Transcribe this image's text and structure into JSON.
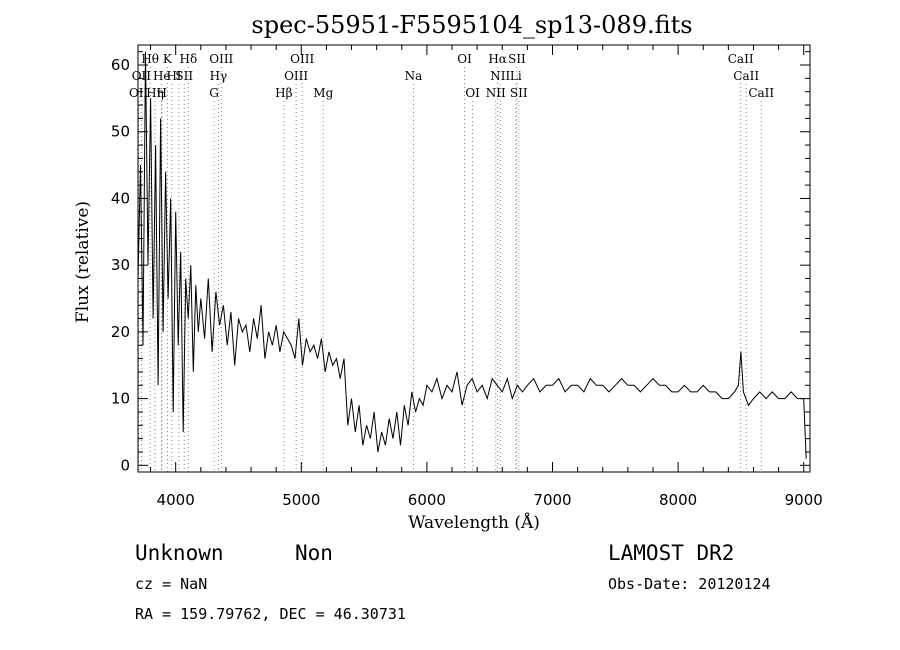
{
  "chart_data": {
    "type": "line",
    "title": "spec-55951-F5595104_sp13-089.fits",
    "xlabel": "Wavelength (Å)",
    "ylabel": "Flux (relative)",
    "xlim": [
      3700,
      9050
    ],
    "ylim": [
      -1,
      63
    ],
    "xticks": [
      "4000",
      "5000",
      "6000",
      "7000",
      "8000",
      "9000"
    ],
    "yticks": [
      "0",
      "10",
      "20",
      "30",
      "40",
      "50",
      "60"
    ],
    "series": [
      {
        "x": [
          3700,
          3720,
          3740,
          3760,
          3780,
          3800,
          3820,
          3840,
          3860,
          3880,
          3900,
          3920,
          3940,
          3960,
          3980,
          4000,
          4020,
          4040,
          4060,
          4080,
          4100,
          4120,
          4140,
          4160,
          4180,
          4200,
          4230,
          4260,
          4290,
          4320,
          4350,
          4380,
          4410,
          4440,
          4470,
          4500,
          4530,
          4560,
          4590,
          4620,
          4650,
          4680,
          4710,
          4740,
          4770,
          4800,
          4830,
          4860,
          4890,
          4920,
          4950,
          4980,
          5010,
          5040,
          5070,
          5100,
          5130,
          5160,
          5190,
          5220,
          5250,
          5280,
          5310,
          5340,
          5370,
          5400,
          5430,
          5460,
          5490,
          5520,
          5550,
          5580,
          5610,
          5640,
          5670,
          5700,
          5730,
          5760,
          5790,
          5820,
          5850,
          5880,
          5910,
          5940,
          5970,
          6000,
          6040,
          6080,
          6120,
          6160,
          6200,
          6240,
          6280,
          6320,
          6360,
          6400,
          6440,
          6480,
          6520,
          6560,
          6600,
          6640,
          6680,
          6720,
          6760,
          6800,
          6850,
          6900,
          6950,
          7000,
          7050,
          7100,
          7150,
          7200,
          7250,
          7300,
          7350,
          7400,
          7450,
          7500,
          7550,
          7600,
          7650,
          7700,
          7750,
          7800,
          7850,
          7900,
          7950,
          8000,
          8050,
          8100,
          8150,
          8200,
          8250,
          8300,
          8350,
          8400,
          8450,
          8480,
          8500,
          8520,
          8540,
          8560,
          8600,
          8650,
          8700,
          8750,
          8800,
          8850,
          8900,
          8950,
          9000,
          9020
        ],
        "y": [
          28,
          45,
          18,
          62,
          30,
          55,
          22,
          48,
          12,
          52,
          20,
          44,
          25,
          40,
          8,
          38,
          18,
          32,
          5,
          28,
          22,
          30,
          14,
          27,
          20,
          25,
          19,
          28,
          17,
          26,
          21,
          24,
          18,
          23,
          15,
          22,
          20,
          21,
          17,
          22,
          19,
          24,
          16,
          20,
          18,
          21,
          17,
          20,
          19,
          18,
          16,
          22,
          15,
          19,
          17,
          18,
          16,
          19,
          14,
          17,
          15,
          16,
          13,
          16,
          6,
          10,
          5,
          9,
          3,
          6,
          4,
          8,
          2,
          5,
          3,
          7,
          4,
          8,
          3,
          9,
          6,
          11,
          8,
          10,
          9,
          12,
          11,
          13,
          10,
          12,
          11,
          14,
          9,
          12,
          13,
          11,
          12,
          10,
          13,
          12,
          11,
          13,
          10,
          12,
          11,
          12,
          13,
          11,
          12,
          12,
          13,
          11,
          12,
          12,
          11,
          13,
          12,
          12,
          11,
          12,
          13,
          12,
          12,
          11,
          12,
          13,
          12,
          12,
          11,
          11,
          12,
          11,
          11,
          12,
          11,
          11,
          10,
          10,
          11,
          12,
          17,
          11,
          10,
          9,
          10,
          11,
          10,
          11,
          10,
          10,
          11,
          10,
          10,
          1
        ]
      }
    ],
    "lines_top": [
      {
        "x": 3797,
        "label": "Hθ"
      },
      {
        "x": 3934,
        "label": "K"
      },
      {
        "x": 4101,
        "label": "Hδ"
      },
      {
        "x": 4363,
        "label": "OIII"
      },
      {
        "x": 5007,
        "label": "OIII"
      },
      {
        "x": 6300,
        "label": "OI"
      },
      {
        "x": 6563,
        "label": "Hα"
      },
      {
        "x": 6717,
        "label": "SII"
      },
      {
        "x": 8498,
        "label": "CaII"
      }
    ],
    "lines_mid": [
      {
        "x": 3727,
        "label": "OII"
      },
      {
        "x": 3889,
        "label": "He"
      },
      {
        "x": 3969,
        "label": "H"
      },
      {
        "x": 4026,
        "label": "I"
      },
      {
        "x": 4068,
        "label": "SII"
      },
      {
        "x": 4340,
        "label": "Hγ"
      },
      {
        "x": 4959,
        "label": "OIII"
      },
      {
        "x": 5893,
        "label": "Na"
      },
      {
        "x": 6584,
        "label": "NII"
      },
      {
        "x": 6708,
        "label": "Li"
      },
      {
        "x": 8542,
        "label": "CaII"
      }
    ],
    "lines_bot": [
      {
        "x": 3705,
        "label": "OII"
      },
      {
        "x": 3835,
        "label": "Hη"
      },
      {
        "x": 3889,
        "label": "H"
      },
      {
        "x": 4305,
        "label": "G"
      },
      {
        "x": 4861,
        "label": "Hβ"
      },
      {
        "x": 5175,
        "label": "Mg"
      },
      {
        "x": 6364,
        "label": "OI"
      },
      {
        "x": 6548,
        "label": "NII"
      },
      {
        "x": 6731,
        "label": "SII"
      },
      {
        "x": 8662,
        "label": "CaII"
      }
    ]
  },
  "info": {
    "class_text": "Unknown",
    "subclass_text": "Non",
    "survey_text": "LAMOST DR2",
    "cz_text": "cz = NaN",
    "obsdate_text": "Obs-Date: 20120124",
    "radec_text": "RA = 159.79762, DEC =  46.30731"
  }
}
